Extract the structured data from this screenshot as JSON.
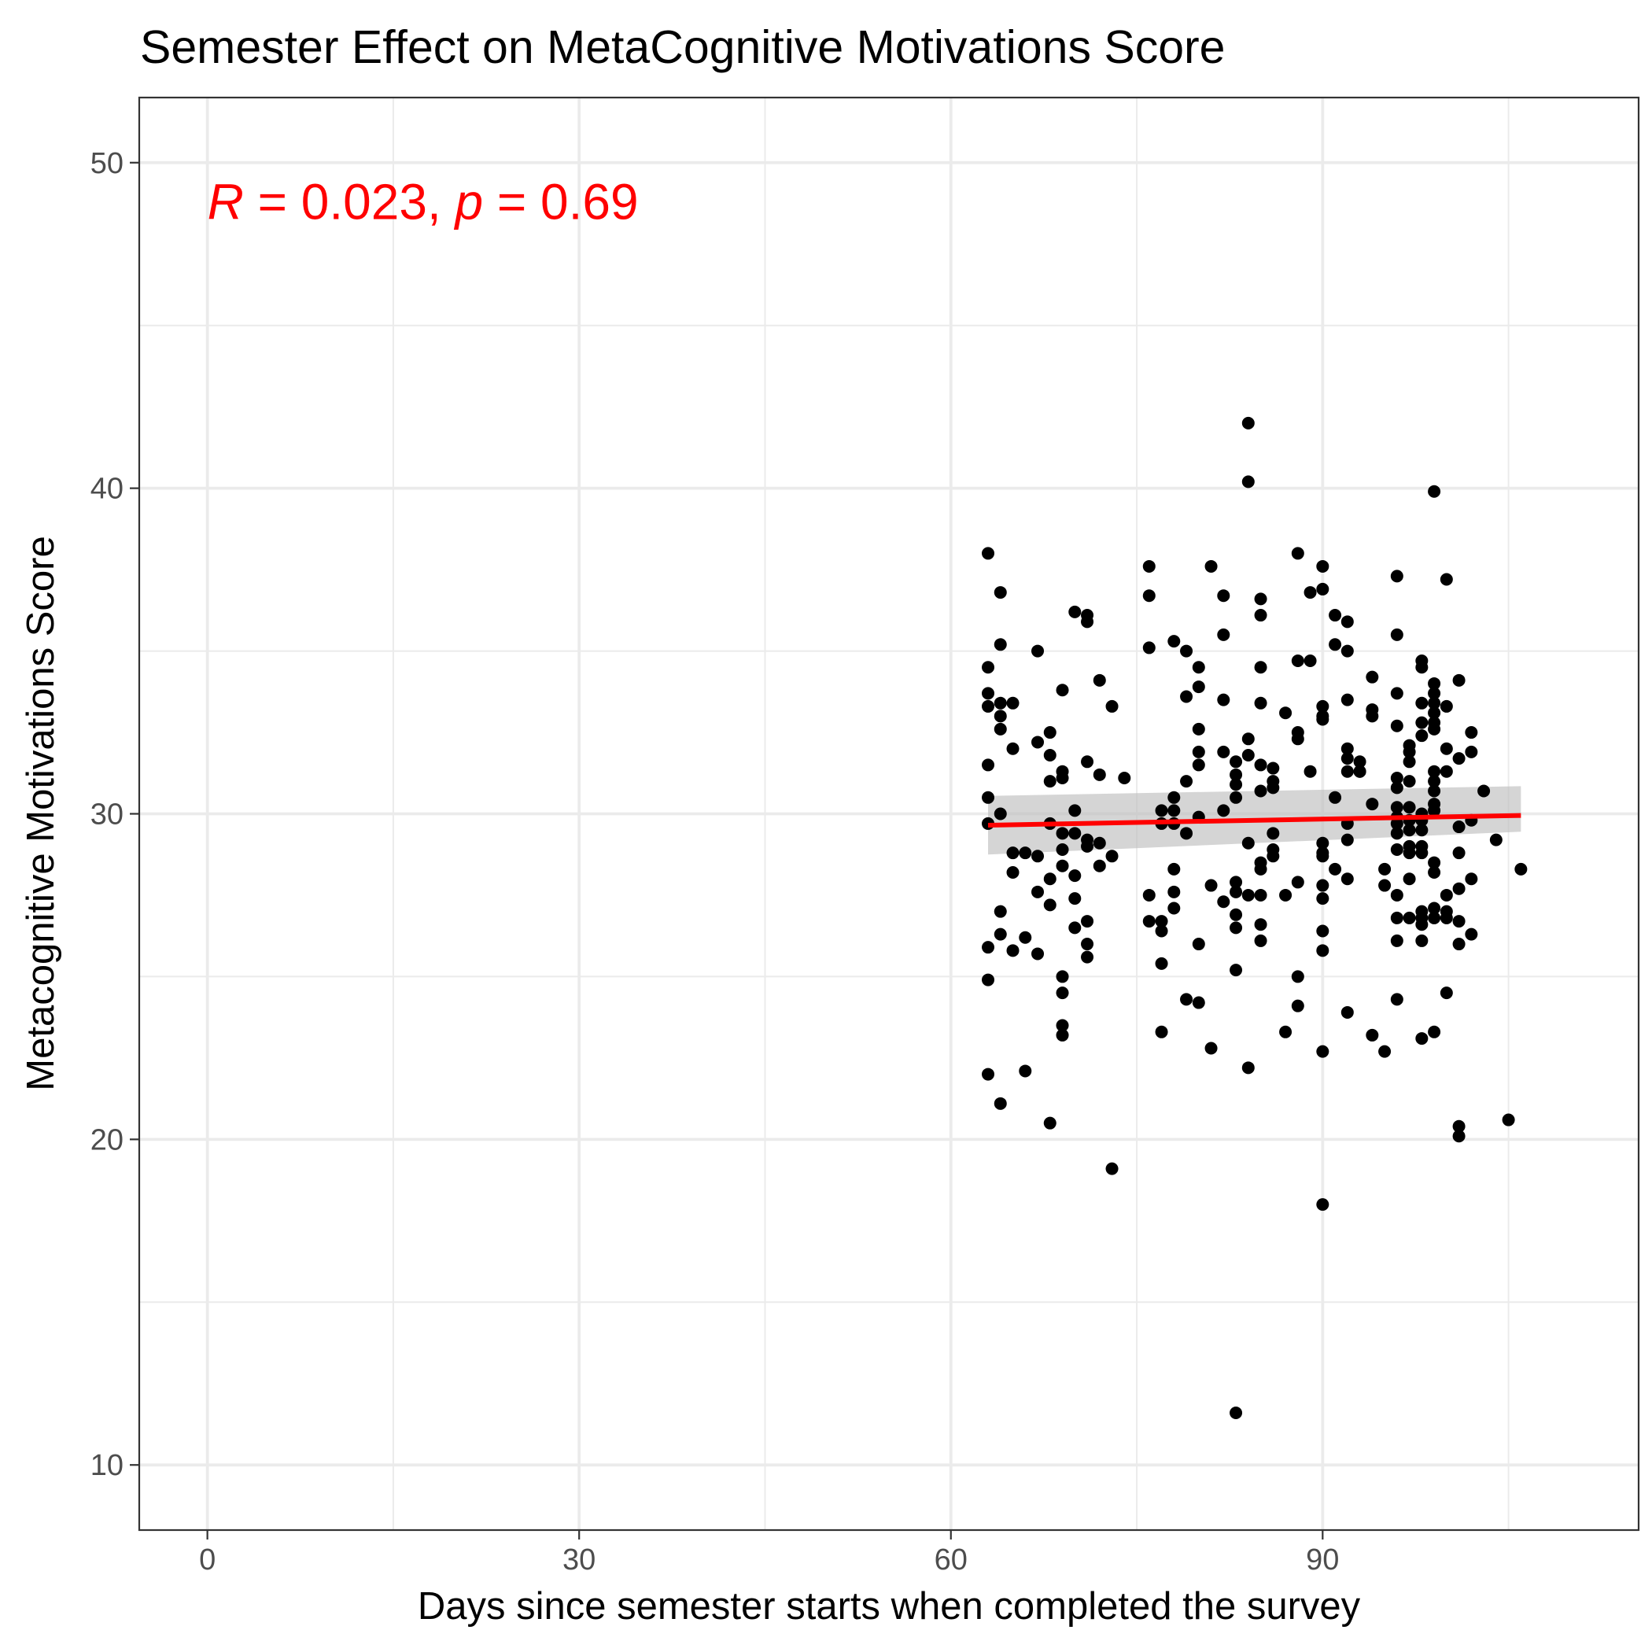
{
  "chart_data": {
    "type": "scatter",
    "title": "Semester Effect on MetaCognitive Motivations Score",
    "xlabel": "Days since semester starts when completed the survey",
    "ylabel": "Metacognitive Motivations Score",
    "xlim": [
      -5.5,
      115.5
    ],
    "ylim": [
      8.0,
      52.0
    ],
    "x_ticks": [
      0,
      30,
      60,
      90
    ],
    "x_tick_labels": [
      "0",
      "30",
      "60",
      "90"
    ],
    "x_minor_ticks": [
      15,
      45,
      75,
      105
    ],
    "y_ticks": [
      10,
      20,
      30,
      40,
      50
    ],
    "y_tick_labels": [
      "10",
      "20",
      "30",
      "40",
      "50"
    ],
    "y_minor_ticks": [
      15,
      25,
      35,
      45
    ],
    "grid": true,
    "point_color": "#000000",
    "annotation": {
      "r_symbol": "R",
      "r_text": " = 0.023, ",
      "p_symbol": "p",
      "p_text": " = 0.69",
      "color": "#ff0000",
      "x": 0,
      "y": 48.8
    },
    "regression": {
      "color": "#ff0000",
      "band_color": "#bfbfbf",
      "x": [
        63,
        106
      ],
      "y": [
        29.65,
        29.95
      ],
      "ci_lower": [
        28.75,
        29.45
      ],
      "ci_upper": [
        30.55,
        30.85
      ]
    },
    "points": [
      [
        63,
        38.0
      ],
      [
        63,
        34.5
      ],
      [
        63,
        33.7
      ],
      [
        63,
        33.3
      ],
      [
        63,
        31.5
      ],
      [
        63,
        30.5
      ],
      [
        63,
        29.7
      ],
      [
        63,
        25.9
      ],
      [
        63,
        24.9
      ],
      [
        63,
        22.0
      ],
      [
        64,
        36.8
      ],
      [
        64,
        35.2
      ],
      [
        64,
        33.4
      ],
      [
        64,
        33.0
      ],
      [
        64,
        32.6
      ],
      [
        64,
        30.0
      ],
      [
        64,
        27.0
      ],
      [
        64,
        26.3
      ],
      [
        64,
        21.1
      ],
      [
        65,
        33.4
      ],
      [
        65,
        32.0
      ],
      [
        65,
        28.8
      ],
      [
        65,
        28.2
      ],
      [
        65,
        25.8
      ],
      [
        66,
        26.2
      ],
      [
        66,
        28.8
      ],
      [
        66,
        22.1
      ],
      [
        67,
        35.0
      ],
      [
        67,
        32.2
      ],
      [
        67,
        28.7
      ],
      [
        67,
        27.6
      ],
      [
        67,
        25.7
      ],
      [
        68,
        32.5
      ],
      [
        68,
        31.8
      ],
      [
        68,
        31.0
      ],
      [
        68,
        29.7
      ],
      [
        68,
        28.0
      ],
      [
        68,
        27.2
      ],
      [
        68,
        20.5
      ],
      [
        69,
        33.8
      ],
      [
        69,
        31.3
      ],
      [
        69,
        31.1
      ],
      [
        69,
        29.4
      ],
      [
        69,
        28.9
      ],
      [
        69,
        28.4
      ],
      [
        69,
        25.0
      ],
      [
        69,
        24.5
      ],
      [
        69,
        23.5
      ],
      [
        69,
        23.2
      ],
      [
        70,
        36.2
      ],
      [
        70,
        30.1
      ],
      [
        70,
        29.4
      ],
      [
        70,
        28.1
      ],
      [
        70,
        27.4
      ],
      [
        70,
        26.5
      ],
      [
        71,
        36.1
      ],
      [
        71,
        35.9
      ],
      [
        71,
        31.6
      ],
      [
        71,
        29.2
      ],
      [
        71,
        29.0
      ],
      [
        71,
        26.7
      ],
      [
        71,
        26.0
      ],
      [
        71,
        25.6
      ],
      [
        72,
        34.1
      ],
      [
        72,
        31.2
      ],
      [
        72,
        29.1
      ],
      [
        72,
        28.4
      ],
      [
        73,
        33.3
      ],
      [
        73,
        28.7
      ],
      [
        73,
        19.1
      ],
      [
        74,
        31.1
      ],
      [
        76,
        37.6
      ],
      [
        76,
        36.7
      ],
      [
        76,
        35.1
      ],
      [
        76,
        27.5
      ],
      [
        76,
        26.7
      ],
      [
        77,
        30.1
      ],
      [
        77,
        29.7
      ],
      [
        77,
        26.7
      ],
      [
        77,
        26.4
      ],
      [
        77,
        25.4
      ],
      [
        77,
        23.3
      ],
      [
        78,
        35.3
      ],
      [
        78,
        30.5
      ],
      [
        78,
        30.1
      ],
      [
        78,
        29.7
      ],
      [
        78,
        28.3
      ],
      [
        78,
        27.6
      ],
      [
        78,
        27.1
      ],
      [
        79,
        35.0
      ],
      [
        79,
        33.6
      ],
      [
        79,
        31.0
      ],
      [
        79,
        29.4
      ],
      [
        79,
        24.3
      ],
      [
        80,
        34.5
      ],
      [
        80,
        33.9
      ],
      [
        80,
        32.6
      ],
      [
        80,
        31.9
      ],
      [
        80,
        31.5
      ],
      [
        80,
        29.9
      ],
      [
        80,
        26.0
      ],
      [
        80,
        24.2
      ],
      [
        81,
        37.6
      ],
      [
        81,
        27.8
      ],
      [
        81,
        22.8
      ],
      [
        82,
        36.7
      ],
      [
        82,
        35.5
      ],
      [
        82,
        33.5
      ],
      [
        82,
        31.9
      ],
      [
        82,
        30.1
      ],
      [
        82,
        27.3
      ],
      [
        83,
        31.6
      ],
      [
        83,
        31.2
      ],
      [
        83,
        30.9
      ],
      [
        83,
        30.5
      ],
      [
        83,
        27.9
      ],
      [
        83,
        27.6
      ],
      [
        83,
        26.9
      ],
      [
        83,
        26.5
      ],
      [
        83,
        25.2
      ],
      [
        83,
        11.6
      ],
      [
        84,
        42.0
      ],
      [
        84,
        40.2
      ],
      [
        84,
        32.3
      ],
      [
        84,
        31.8
      ],
      [
        84,
        29.1
      ],
      [
        84,
        27.5
      ],
      [
        84,
        22.2
      ],
      [
        85,
        36.6
      ],
      [
        85,
        36.1
      ],
      [
        85,
        34.5
      ],
      [
        85,
        33.4
      ],
      [
        85,
        31.5
      ],
      [
        85,
        30.7
      ],
      [
        85,
        28.5
      ],
      [
        85,
        28.3
      ],
      [
        85,
        27.5
      ],
      [
        85,
        26.6
      ],
      [
        85,
        26.1
      ],
      [
        86,
        31.4
      ],
      [
        86,
        31.0
      ],
      [
        86,
        30.8
      ],
      [
        86,
        29.4
      ],
      [
        86,
        28.9
      ],
      [
        86,
        28.7
      ],
      [
        87,
        33.1
      ],
      [
        87,
        27.5
      ],
      [
        87,
        23.3
      ],
      [
        88,
        38.0
      ],
      [
        88,
        34.7
      ],
      [
        88,
        32.5
      ],
      [
        88,
        32.3
      ],
      [
        88,
        27.9
      ],
      [
        88,
        25.0
      ],
      [
        88,
        24.1
      ],
      [
        89,
        36.8
      ],
      [
        89,
        34.7
      ],
      [
        89,
        31.3
      ],
      [
        90,
        37.6
      ],
      [
        90,
        36.9
      ],
      [
        90,
        33.3
      ],
      [
        90,
        33.0
      ],
      [
        90,
        32.9
      ],
      [
        90,
        29.1
      ],
      [
        90,
        28.8
      ],
      [
        90,
        28.7
      ],
      [
        90,
        27.8
      ],
      [
        90,
        27.4
      ],
      [
        90,
        26.4
      ],
      [
        90,
        25.8
      ],
      [
        90,
        22.7
      ],
      [
        90,
        18.0
      ],
      [
        91,
        36.1
      ],
      [
        91,
        35.2
      ],
      [
        91,
        30.5
      ],
      [
        91,
        28.3
      ],
      [
        92,
        35.9
      ],
      [
        92,
        35.0
      ],
      [
        92,
        33.5
      ],
      [
        92,
        32.0
      ],
      [
        92,
        31.7
      ],
      [
        92,
        31.3
      ],
      [
        92,
        29.7
      ],
      [
        92,
        29.2
      ],
      [
        92,
        28.0
      ],
      [
        92,
        23.9
      ],
      [
        93,
        31.6
      ],
      [
        93,
        31.3
      ],
      [
        93,
        31.3
      ],
      [
        94,
        34.2
      ],
      [
        94,
        33.2
      ],
      [
        94,
        33.0
      ],
      [
        94,
        30.3
      ],
      [
        94,
        23.2
      ],
      [
        95,
        28.3
      ],
      [
        95,
        27.8
      ],
      [
        95,
        22.7
      ],
      [
        96,
        37.3
      ],
      [
        96,
        35.5
      ],
      [
        96,
        33.7
      ],
      [
        96,
        32.7
      ],
      [
        96,
        31.1
      ],
      [
        96,
        30.8
      ],
      [
        96,
        30.2
      ],
      [
        96,
        29.9
      ],
      [
        96,
        29.7
      ],
      [
        96,
        29.4
      ],
      [
        96,
        28.9
      ],
      [
        96,
        27.5
      ],
      [
        96,
        26.8
      ],
      [
        96,
        26.1
      ],
      [
        96,
        24.3
      ],
      [
        97,
        32.1
      ],
      [
        97,
        31.9
      ],
      [
        97,
        31.6
      ],
      [
        97,
        31.0
      ],
      [
        97,
        30.2
      ],
      [
        97,
        29.8
      ],
      [
        97,
        29.5
      ],
      [
        97,
        29.0
      ],
      [
        97,
        28.8
      ],
      [
        97,
        28.0
      ],
      [
        97,
        26.8
      ],
      [
        98,
        34.7
      ],
      [
        98,
        34.5
      ],
      [
        98,
        33.4
      ],
      [
        98,
        32.8
      ],
      [
        98,
        32.4
      ],
      [
        98,
        30.0
      ],
      [
        98,
        29.8
      ],
      [
        98,
        29.5
      ],
      [
        98,
        29.0
      ],
      [
        98,
        28.8
      ],
      [
        98,
        27.0
      ],
      [
        98,
        26.8
      ],
      [
        98,
        26.6
      ],
      [
        98,
        26.1
      ],
      [
        98,
        23.1
      ],
      [
        99,
        39.9
      ],
      [
        99,
        34.0
      ],
      [
        99,
        33.7
      ],
      [
        99,
        33.4
      ],
      [
        99,
        33.1
      ],
      [
        99,
        32.8
      ],
      [
        99,
        32.6
      ],
      [
        99,
        31.3
      ],
      [
        99,
        31.0
      ],
      [
        99,
        30.7
      ],
      [
        99,
        30.3
      ],
      [
        99,
        30.1
      ],
      [
        99,
        28.5
      ],
      [
        99,
        28.2
      ],
      [
        99,
        27.1
      ],
      [
        99,
        26.8
      ],
      [
        99,
        23.3
      ],
      [
        100,
        37.2
      ],
      [
        100,
        33.3
      ],
      [
        100,
        32.0
      ],
      [
        100,
        31.3
      ],
      [
        100,
        27.5
      ],
      [
        100,
        27.0
      ],
      [
        100,
        26.8
      ],
      [
        100,
        24.5
      ],
      [
        101,
        34.1
      ],
      [
        101,
        31.7
      ],
      [
        101,
        29.6
      ],
      [
        101,
        28.8
      ],
      [
        101,
        27.7
      ],
      [
        101,
        26.7
      ],
      [
        101,
        26.0
      ],
      [
        101,
        20.4
      ],
      [
        101,
        20.1
      ],
      [
        102,
        32.5
      ],
      [
        102,
        31.9
      ],
      [
        102,
        29.8
      ],
      [
        102,
        28.0
      ],
      [
        102,
        26.3
      ],
      [
        103,
        30.7
      ],
      [
        104,
        29.2
      ],
      [
        105,
        20.6
      ],
      [
        106,
        28.3
      ]
    ]
  }
}
